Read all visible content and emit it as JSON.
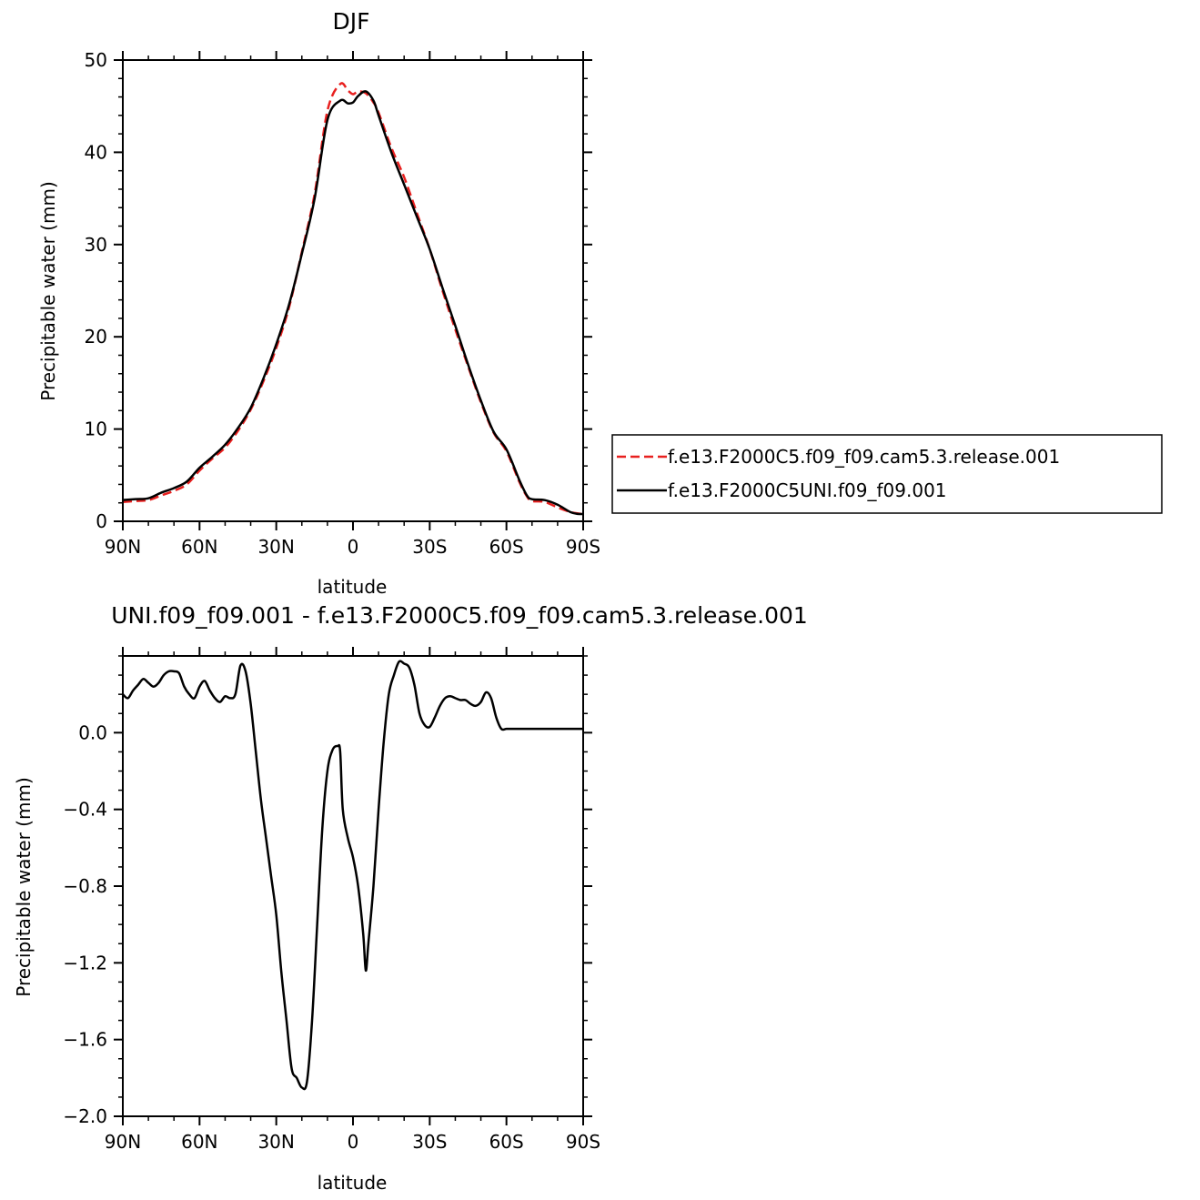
{
  "chart_data": [
    {
      "type": "line",
      "title": "DJF",
      "xlabel": "latitude",
      "ylabel": "Precipitable water (mm)",
      "xlim": [
        90,
        -90
      ],
      "ylim": [
        0,
        50
      ],
      "x_tick_values": [
        90,
        60,
        30,
        0,
        -30,
        -60,
        -90
      ],
      "x_tick_labels": [
        "90N",
        "60N",
        "30N",
        "0",
        "30S",
        "60S",
        "90S"
      ],
      "y_tick_values": [
        0,
        10,
        20,
        30,
        40,
        50
      ],
      "y_tick_labels": [
        "0",
        "10",
        "20",
        "30",
        "40",
        "50"
      ],
      "legend_position": "right",
      "series": [
        {
          "name": "f.e13.F2000C5.f09_f09.cam5.3.release.001",
          "color": "#e8201f",
          "dash": "dashed",
          "x": [
            90,
            85,
            80,
            75,
            70,
            65,
            60,
            55,
            50,
            45,
            40,
            35,
            30,
            25,
            20,
            15,
            10,
            5,
            2,
            0,
            -2,
            -5,
            -8,
            -10,
            -15,
            -20,
            -25,
            -30,
            -35,
            -40,
            -45,
            -50,
            -55,
            -60,
            -65,
            -68,
            -70,
            -75,
            -80,
            -85,
            -88,
            -90
          ],
          "y": [
            2.1,
            2.2,
            2.3,
            2.8,
            3.3,
            4.0,
            5.5,
            6.8,
            8.0,
            9.8,
            12.1,
            15.2,
            18.8,
            23.2,
            29.2,
            35.5,
            44.5,
            47.4,
            46.7,
            46.3,
            46.6,
            46.4,
            45.4,
            44.3,
            40.5,
            37.3,
            33.4,
            29.5,
            25.0,
            20.8,
            16.8,
            12.9,
            9.6,
            7.6,
            4.3,
            2.7,
            2.2,
            2.1,
            1.5,
            1.0,
            0.85,
            0.8
          ]
        },
        {
          "name": "f.e13.F2000C5UNI.f09_f09.001",
          "color": "#000000",
          "dash": "solid",
          "x": [
            90,
            85,
            80,
            75,
            70,
            65,
            60,
            55,
            50,
            45,
            40,
            35,
            30,
            25,
            20,
            15,
            10,
            5,
            2,
            0,
            -2,
            -5,
            -8,
            -10,
            -15,
            -20,
            -25,
            -30,
            -35,
            -40,
            -45,
            -50,
            -55,
            -60,
            -65,
            -68,
            -70,
            -75,
            -80,
            -85,
            -88,
            -90
          ],
          "y": [
            2.3,
            2.4,
            2.5,
            3.1,
            3.6,
            4.3,
            5.8,
            7.0,
            8.3,
            10.1,
            12.3,
            15.5,
            19.2,
            23.5,
            29.0,
            35.0,
            43.5,
            45.6,
            45.3,
            45.4,
            46.1,
            46.6,
            45.6,
            44.0,
            40.0,
            36.5,
            33.0,
            29.5,
            25.3,
            21.2,
            17.0,
            13.1,
            9.7,
            7.8,
            4.5,
            2.8,
            2.4,
            2.3,
            1.8,
            1.0,
            0.8,
            0.8
          ]
        }
      ]
    },
    {
      "type": "line",
      "title": "UNI.f09_f09.001 - f.e13.F2000C5.f09_f09.cam5.3.release.001",
      "xlabel": "latitude",
      "ylabel": "Precipitable water (mm)",
      "xlim": [
        90,
        -90
      ],
      "ylim": [
        -2.0,
        0.4
      ],
      "x_tick_values": [
        90,
        60,
        30,
        0,
        -30,
        -60,
        -90
      ],
      "x_tick_labels": [
        "90N",
        "60N",
        "30N",
        "0",
        "30S",
        "60S",
        "90S"
      ],
      "y_tick_values": [
        -2.0,
        -1.6,
        -1.2,
        -0.8,
        -0.4,
        0.0
      ],
      "y_tick_labels": [
        "-2.0",
        "-1.6",
        "-1.2",
        "-0.8",
        "-0.4",
        "0.0"
      ],
      "series": [
        {
          "color": "#000000",
          "dash": "solid",
          "x": [
            90,
            88,
            86,
            84,
            82,
            80,
            78,
            76,
            74,
            72,
            70,
            68,
            66,
            64,
            62,
            60,
            58,
            56,
            54,
            52,
            50,
            48,
            46,
            44,
            42,
            40,
            38,
            36,
            34,
            32,
            30,
            28,
            26,
            24,
            22,
            20,
            18,
            16,
            14,
            12,
            10,
            8,
            6,
            5,
            4,
            2,
            0,
            -2,
            -4,
            -5,
            -6,
            -8,
            -10,
            -12,
            -14,
            -16,
            -18,
            -20,
            -22,
            -24,
            -26,
            -28,
            -30,
            -32,
            -34,
            -36,
            -38,
            -40,
            -42,
            -44,
            -46,
            -48,
            -50,
            -52,
            -54,
            -56,
            -58,
            -60,
            -62,
            -64,
            -66,
            -68,
            -70,
            -72,
            -74,
            -76,
            -78,
            -80,
            -82,
            -84,
            -86,
            -88,
            -90
          ],
          "y": [
            0.2,
            0.18,
            0.22,
            0.25,
            0.28,
            0.26,
            0.24,
            0.26,
            0.3,
            0.32,
            0.32,
            0.31,
            0.24,
            0.2,
            0.18,
            0.24,
            0.27,
            0.22,
            0.18,
            0.16,
            0.19,
            0.18,
            0.2,
            0.35,
            0.32,
            0.15,
            -0.1,
            -0.35,
            -0.55,
            -0.75,
            -0.95,
            -1.25,
            -1.5,
            -1.75,
            -1.8,
            -1.85,
            -1.82,
            -1.5,
            -1.0,
            -0.5,
            -0.2,
            -0.09,
            -0.07,
            -0.1,
            -0.4,
            -0.55,
            -0.65,
            -0.8,
            -1.05,
            -1.24,
            -1.1,
            -0.8,
            -0.4,
            -0.05,
            0.2,
            0.3,
            0.37,
            0.36,
            0.34,
            0.25,
            0.1,
            0.04,
            0.03,
            0.08,
            0.14,
            0.18,
            0.19,
            0.18,
            0.17,
            0.17,
            0.15,
            0.14,
            0.16,
            0.21,
            0.18,
            0.08,
            0.02,
            0.02,
            0.02,
            0.02,
            0.02,
            0.02,
            0.02,
            0.02,
            0.02,
            0.02,
            0.02,
            0.02,
            0.02,
            0.02,
            0.02,
            0.02,
            0.02
          ]
        }
      ]
    }
  ]
}
